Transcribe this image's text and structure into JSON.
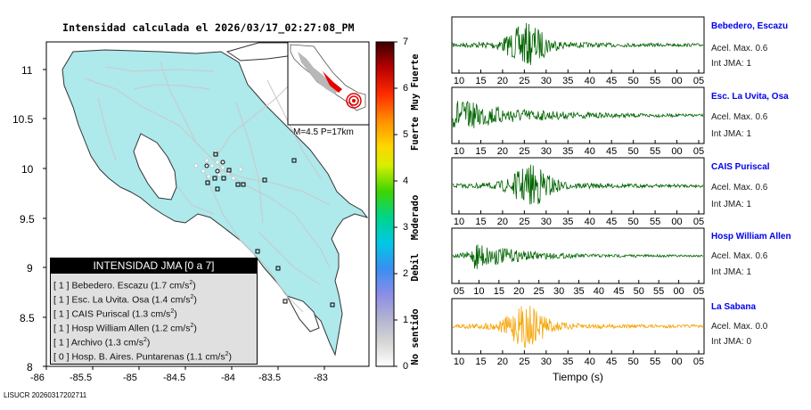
{
  "map": {
    "title": "Intensidad calculada el 2026/03/17_02:27:08_PM",
    "x_ticks": [
      "-86",
      "-85.5",
      "-85",
      "-84.5",
      "-84",
      "-83.5",
      "-83"
    ],
    "y_ticks": [
      "11",
      "10.5",
      "10",
      "9.5",
      "9",
      "8.5",
      "8"
    ],
    "inset_label": "M=4.5 P=17km",
    "legend": {
      "title": "INTENSIDAD JMA [0 a 7]",
      "items": [
        {
          "level": "[ 1 ]",
          "name": "Bebedero. Escazu (1.7 cm/s",
          "end": ")"
        },
        {
          "level": "[ 1 ]",
          "name": "Esc. La Uvita. Osa (1.4 cm/s",
          "end": ")"
        },
        {
          "level": "[ 1 ]",
          "name": "CAIS Puriscal (1.3 cm/s",
          "end": ")"
        },
        {
          "level": "[ 1 ]",
          "name": "Hosp William Allen (1.2 cm/s",
          "end": ")"
        },
        {
          "level": "[ 1 ]",
          "name": "Archivo (1.3 cm/s",
          "end": ")"
        },
        {
          "level": "[ 0 ]",
          "name": "Hosp. B. Aires. Puntarenas (1.1 cm/s",
          "end": ")"
        }
      ],
      "exponent": "2"
    },
    "footer": "LISUCR 20260317202711",
    "colors": {
      "land": "#aee9ec",
      "sea": "#ffffff",
      "legend_header": "#000000"
    }
  },
  "colorbar": {
    "ticks": [
      "7",
      "6",
      "5",
      "4",
      "3",
      "2",
      "1",
      "0"
    ],
    "labels": [
      "Muy Fuerte",
      "Fuerte",
      "Moderado",
      "Debil",
      "No sentido"
    ]
  },
  "chart_data": [
    {
      "type": "line",
      "name": "Bebedero, Escazu",
      "acel_label": "Acel. Max. 0.6",
      "int_label": "Int JMA: 1",
      "x_ticks": [
        "10",
        "15",
        "20",
        "25",
        "30",
        "35",
        "40",
        "45",
        "50",
        "55",
        "00",
        "05"
      ],
      "event_center_s": 27,
      "color": "#006400"
    },
    {
      "type": "line",
      "name": "Esc. La Uvita, Osa",
      "acel_label": "Acel. Max. 0.6",
      "int_label": "Int JMA: 1",
      "x_ticks": [
        "10",
        "15",
        "20",
        "25",
        "30",
        "35",
        "40",
        "45",
        "50",
        "55",
        "00",
        "05"
      ],
      "event_center_s": 11,
      "color": "#006400"
    },
    {
      "type": "line",
      "name": "CAIS Puriscal",
      "acel_label": "Acel. Max. 0.6",
      "int_label": "Int JMA: 1",
      "x_ticks": [
        "10",
        "15",
        "20",
        "25",
        "30",
        "35",
        "40",
        "45",
        "50",
        "55",
        "00",
        "05"
      ],
      "event_center_s": 28,
      "color": "#006400"
    },
    {
      "type": "line",
      "name": "Hosp William Allen",
      "acel_label": "Acel. Max. 0.6",
      "int_label": "Int JMA: 1",
      "x_ticks": [
        "05",
        "10",
        "15",
        "20",
        "25",
        "30",
        "35",
        "40",
        "45",
        "50",
        "55",
        "00",
        "05"
      ],
      "event_center_s": 15,
      "color": "#006400"
    },
    {
      "type": "line",
      "name": "La Sabana",
      "acel_label": "Acel. Max. 0.0",
      "int_label": "Int JMA: 0",
      "x_ticks": [
        "10",
        "15",
        "20",
        "25",
        "30",
        "35",
        "40",
        "45",
        "50",
        "55",
        "00",
        "05"
      ],
      "event_center_s": 27,
      "color": "#f5a300",
      "xlabel": "Tiempo (s)"
    }
  ]
}
